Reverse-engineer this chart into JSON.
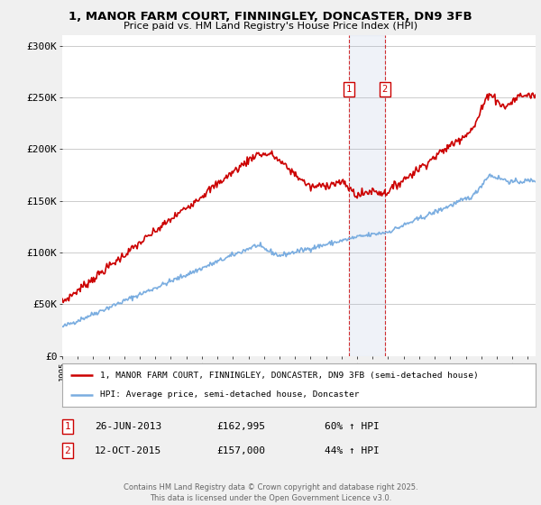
{
  "title_line1": "1, MANOR FARM COURT, FINNINGLEY, DONCASTER, DN9 3FB",
  "title_line2": "Price paid vs. HM Land Registry's House Price Index (HPI)",
  "legend_label1": "1, MANOR FARM COURT, FINNINGLEY, DONCASTER, DN9 3FB (semi-detached house)",
  "legend_label2": "HPI: Average price, semi-detached house, Doncaster",
  "sale1_date": "26-JUN-2013",
  "sale1_price": 162995,
  "sale1_label": "1",
  "sale1_pct": "60% ↑ HPI",
  "sale2_date": "12-OCT-2015",
  "sale2_price": 157000,
  "sale2_label": "2",
  "sale2_pct": "44% ↑ HPI",
  "footer": "Contains HM Land Registry data © Crown copyright and database right 2025.\nThis data is licensed under the Open Government Licence v3.0.",
  "red_color": "#cc0000",
  "blue_color": "#7aade0",
  "background": "#f0f0f0",
  "plot_background": "#ffffff",
  "grid_color": "#cccccc",
  "ylim": [
    0,
    310000
  ],
  "yticks": [
    0,
    50000,
    100000,
    150000,
    200000,
    250000,
    300000
  ],
  "ytick_labels": [
    "£0",
    "£50K",
    "£100K",
    "£150K",
    "£200K",
    "£250K",
    "£300K"
  ],
  "sale1_x": 2013.46,
  "sale2_x": 2015.79,
  "xlim_start": 1995,
  "xlim_end": 2025.5
}
